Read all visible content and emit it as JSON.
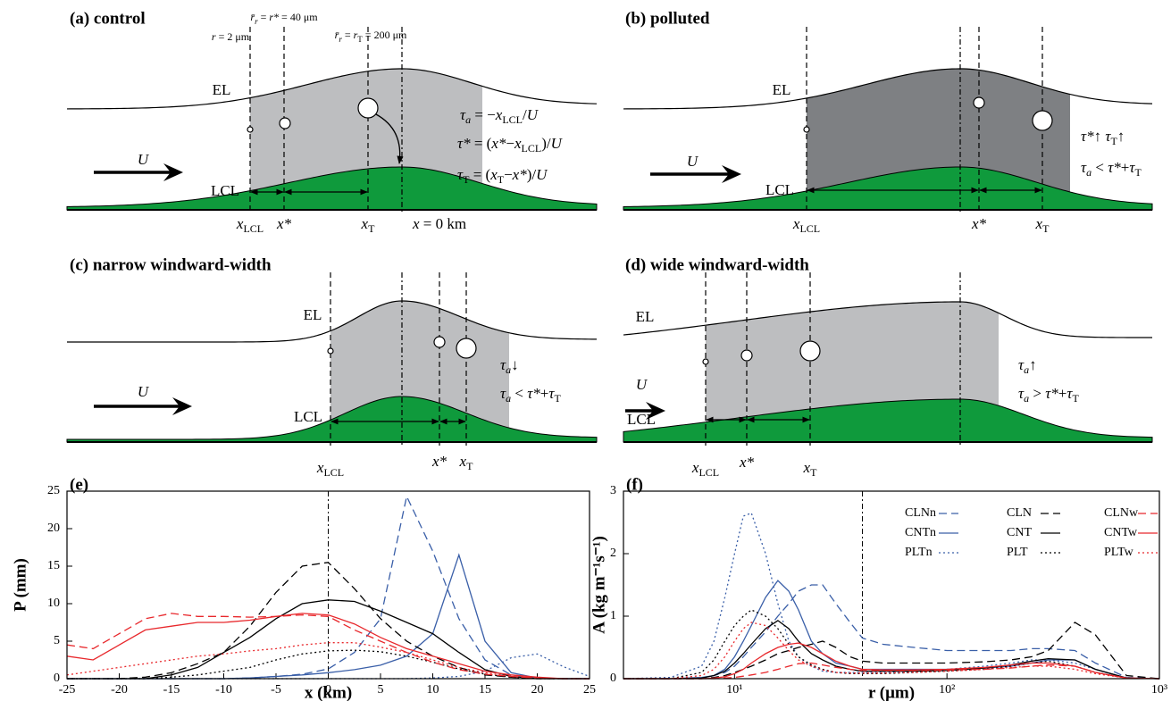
{
  "diagrams": [
    {
      "title": "(a) control",
      "labels": [
        [
          {
            "text": "EL"
          }
        ],
        [
          {
            "text": "LCL"
          }
        ],
        [
          {
            "text": "U",
            "style": "italic"
          }
        ],
        [
          {
            "text": "x",
            "style": "italic"
          },
          {
            "text": "LCL",
            "style": "sub"
          }
        ],
        [
          {
            "text": "x*",
            "style": "italic"
          }
        ],
        [
          {
            "text": "x",
            "style": "italic"
          },
          {
            "text": "T",
            "style": "sub"
          }
        ],
        [
          {
            "text": "x",
            "style": "italic"
          },
          {
            "text": " = 0 km"
          }
        ],
        [
          {
            "text": "r",
            "style": "italic"
          },
          {
            "text": " = 2 μm"
          }
        ],
        [
          {
            "text": "r̄",
            "style": "italic"
          },
          {
            "text": "r",
            "style": "sub-italic"
          },
          {
            "text": " = "
          },
          {
            "text": "r*",
            "style": "italic"
          },
          {
            "text": " = 40 μm"
          }
        ],
        [
          {
            "text": "r̄",
            "style": "italic"
          },
          {
            "text": "r",
            "style": "sub-italic"
          },
          {
            "text": " = "
          },
          {
            "text": "r",
            "style": "italic"
          },
          {
            "text": "T",
            "style": "sub"
          },
          {
            "text": " = 200 μm"
          }
        ],
        [
          {
            "text": "τ",
            "style": "italic"
          },
          {
            "text": "a",
            "style": "sub-italic"
          },
          {
            "text": " = −"
          },
          {
            "text": "x",
            "style": "italic"
          },
          {
            "text": "LCL",
            "style": "sub"
          },
          {
            "text": "/"
          },
          {
            "text": "U",
            "style": "italic"
          }
        ],
        [
          {
            "text": "τ*",
            "style": "italic"
          },
          {
            "text": " = ("
          },
          {
            "text": "x*",
            "style": "italic"
          },
          {
            "text": "−"
          },
          {
            "text": "x",
            "style": "italic"
          },
          {
            "text": "LCL",
            "style": "sub"
          },
          {
            "text": ")/"
          },
          {
            "text": "U",
            "style": "italic"
          }
        ],
        [
          {
            "text": "τ",
            "style": "italic"
          },
          {
            "text": "T",
            "style": "sub"
          },
          {
            "text": " = ("
          },
          {
            "text": "x",
            "style": "italic"
          },
          {
            "text": "T",
            "style": "sub"
          },
          {
            "text": "−"
          },
          {
            "text": "x*",
            "style": "italic"
          },
          {
            "text": ")/"
          },
          {
            "text": "U",
            "style": "italic"
          }
        ]
      ]
    },
    {
      "title": "(b) polluted",
      "labels": [
        [
          {
            "text": "EL"
          }
        ],
        [
          {
            "text": "LCL"
          }
        ],
        [
          {
            "text": "U",
            "style": "italic"
          }
        ],
        [
          {
            "text": "x",
            "style": "italic"
          },
          {
            "text": "LCL",
            "style": "sub"
          }
        ],
        [
          {
            "text": "x*",
            "style": "italic"
          }
        ],
        [
          {
            "text": "x",
            "style": "italic"
          },
          {
            "text": "T",
            "style": "sub"
          }
        ],
        [
          {
            "text": "τ*",
            "style": "italic"
          },
          {
            "text": "↑  "
          },
          {
            "text": "τ",
            "style": "italic"
          },
          {
            "text": "T",
            "style": "sub"
          },
          {
            "text": "↑"
          }
        ],
        [
          {
            "text": "τ",
            "style": "italic"
          },
          {
            "text": "a",
            "style": "sub-italic"
          },
          {
            "text": " < "
          },
          {
            "text": "τ*",
            "style": "italic"
          },
          {
            "text": "+"
          },
          {
            "text": "τ",
            "style": "italic"
          },
          {
            "text": "T",
            "style": "sub"
          }
        ]
      ]
    },
    {
      "title": "(c) narrow windward-width",
      "labels": [
        [
          {
            "text": "EL"
          }
        ],
        [
          {
            "text": "LCL"
          }
        ],
        [
          {
            "text": "U",
            "style": "italic"
          }
        ],
        [
          {
            "text": "x",
            "style": "italic"
          },
          {
            "text": "LCL",
            "style": "sub"
          }
        ],
        [
          {
            "text": "x*",
            "style": "italic"
          }
        ],
        [
          {
            "text": "x",
            "style": "italic"
          },
          {
            "text": "T",
            "style": "sub"
          }
        ],
        [
          {
            "text": "τ",
            "style": "italic"
          },
          {
            "text": "a",
            "style": "sub-italic"
          },
          {
            "text": "↓"
          }
        ],
        [
          {
            "text": "τ",
            "style": "italic"
          },
          {
            "text": "a",
            "style": "sub-italic"
          },
          {
            "text": " < "
          },
          {
            "text": "τ*",
            "style": "italic"
          },
          {
            "text": "+"
          },
          {
            "text": "τ",
            "style": "italic"
          },
          {
            "text": "T",
            "style": "sub"
          }
        ]
      ]
    },
    {
      "title": "(d) wide windward-width",
      "labels": [
        [
          {
            "text": "EL"
          }
        ],
        [
          {
            "text": "LCL"
          }
        ],
        [
          {
            "text": "U",
            "style": "italic"
          }
        ],
        [
          {
            "text": "x",
            "style": "italic"
          },
          {
            "text": "LCL",
            "style": "sub"
          }
        ],
        [
          {
            "text": "x*",
            "style": "italic"
          }
        ],
        [
          {
            "text": "x",
            "style": "italic"
          },
          {
            "text": "T",
            "style": "sub"
          }
        ],
        [
          {
            "text": "τ",
            "style": "italic"
          },
          {
            "text": "a",
            "style": "sub-italic"
          },
          {
            "text": "↑"
          }
        ],
        [
          {
            "text": "τ",
            "style": "italic"
          },
          {
            "text": "a",
            "style": "sub-italic"
          },
          {
            "text": " > "
          },
          {
            "text": "τ*",
            "style": "italic"
          },
          {
            "text": "+"
          },
          {
            "text": "τ",
            "style": "italic"
          },
          {
            "text": "T",
            "style": "sub"
          }
        ]
      ]
    }
  ],
  "chart_data": [
    {
      "type": "line",
      "title": "(e)",
      "x_label": "x (km)",
      "y_label": "P (mm)",
      "x": [
        -25,
        -22.5,
        -20,
        -17.5,
        -15,
        -12.5,
        -10,
        -7.5,
        -5,
        -2.5,
        0,
        2.5,
        5,
        7.5,
        10,
        12.5,
        15,
        17.5,
        20,
        22.5,
        25
      ],
      "xlim": [
        -25,
        25
      ],
      "xticks": [
        -25,
        -20,
        -15,
        -10,
        -5,
        0,
        5,
        10,
        15,
        20,
        25
      ],
      "ylim": [
        0,
        25
      ],
      "yticks": [
        0,
        5,
        10,
        15,
        20,
        25
      ],
      "vline": 0,
      "series": [
        {
          "color": "#3a5fa8",
          "dash": "dashed",
          "values": [
            0,
            0,
            0,
            0,
            0,
            0,
            0,
            0.1,
            0.3,
            0.6,
            1.3,
            3.5,
            8,
            24.3,
            17,
            8,
            2.5,
            0.5,
            0.1,
            0,
            0
          ]
        },
        {
          "color": "#3a5fa8",
          "dash": "solid",
          "values": [
            0,
            0,
            0,
            0,
            0,
            0,
            0,
            0.1,
            0.3,
            0.5,
            0.8,
            1.2,
            1.8,
            3,
            6,
            16.5,
            5,
            0.8,
            0.1,
            0,
            0
          ]
        },
        {
          "color": "#3a5fa8",
          "dash": "dotted",
          "values": [
            0,
            0,
            0,
            0,
            0,
            0,
            0,
            0,
            0,
            0,
            0,
            0,
            0,
            0,
            0.1,
            0.3,
            1,
            2.8,
            3.3,
            1.6,
            0.3
          ]
        },
        {
          "color": "#000000",
          "dash": "dashed",
          "values": [
            0,
            0,
            0,
            0.2,
            0.8,
            2,
            3.5,
            7,
            11.5,
            15,
            15.5,
            12,
            8,
            5,
            3,
            1.5,
            0.5,
            0.2,
            0,
            0,
            0
          ]
        },
        {
          "color": "#000000",
          "dash": "solid",
          "values": [
            0,
            0,
            0,
            0,
            0.5,
            1.5,
            3.5,
            5.5,
            8,
            10,
            10.5,
            10.3,
            9,
            7.5,
            6,
            3.5,
            1.2,
            0.3,
            0,
            0,
            0
          ]
        },
        {
          "color": "#000000",
          "dash": "dotted",
          "values": [
            0,
            0,
            0,
            0,
            0.2,
            0.5,
            1,
            1.5,
            2.5,
            3.3,
            3.7,
            3.8,
            3.6,
            3,
            2.2,
            1.3,
            0.6,
            0.2,
            0,
            0,
            0
          ]
        },
        {
          "color": "#e8282c",
          "dash": "dashed",
          "values": [
            4.5,
            4,
            6,
            8,
            8.7,
            8.3,
            8.3,
            8.2,
            8.3,
            8.5,
            8.3,
            6.5,
            5,
            3.5,
            2.2,
            1.2,
            0.6,
            0.3,
            0.1,
            0,
            0
          ]
        },
        {
          "color": "#e8282c",
          "dash": "solid",
          "values": [
            3,
            2.5,
            4.5,
            6.5,
            7,
            7.5,
            7.5,
            7.8,
            8.3,
            8.7,
            8.5,
            7.3,
            5.5,
            4,
            3,
            2,
            1,
            0.5,
            0.2,
            0,
            0
          ]
        },
        {
          "color": "#e8282c",
          "dash": "dotted",
          "values": [
            0.5,
            1,
            1.5,
            2,
            2.5,
            3,
            3.3,
            3.7,
            4,
            4.5,
            4.8,
            4.8,
            4.2,
            3.5,
            2.5,
            1.5,
            0.8,
            0.3,
            0.1,
            0,
            0
          ]
        }
      ]
    },
    {
      "type": "line",
      "title": "(f)",
      "x_label": "r (μm)",
      "y_label": "A (kg m⁻¹s⁻¹)",
      "xscale": "log",
      "legend": "upper right",
      "x": [
        3,
        5,
        7,
        8,
        9,
        10,
        11,
        12,
        14,
        16,
        18,
        20,
        23,
        26,
        30,
        35,
        40,
        50,
        70,
        100,
        150,
        200,
        250,
        300,
        400,
        500,
        700,
        1000
      ],
      "xlim": [
        3,
        1000
      ],
      "xticks": [
        {
          "value": 10,
          "label": "10¹"
        },
        {
          "value": 100,
          "label": "10²"
        },
        {
          "value": 1000,
          "label": "10³"
        }
      ],
      "ylim": [
        0,
        3
      ],
      "yticks": [
        0,
        1,
        2,
        3
      ],
      "vline": 40,
      "series": [
        {
          "name": "CLNn",
          "color": "#3a5fa8",
          "dash": "dashed",
          "values": [
            0,
            0,
            0,
            0.05,
            0.1,
            0.2,
            0.35,
            0.5,
            0.75,
            1.0,
            1.2,
            1.4,
            1.5,
            1.5,
            1.2,
            0.9,
            0.65,
            0.55,
            0.5,
            0.45,
            0.45,
            0.45,
            0.48,
            0.48,
            0.45,
            0.25,
            0.02,
            0
          ]
        },
        {
          "name": "CNTn",
          "color": "#3a5fa8",
          "dash": "solid",
          "values": [
            0,
            0,
            0.02,
            0.05,
            0.15,
            0.35,
            0.6,
            0.85,
            1.3,
            1.57,
            1.4,
            1.1,
            0.6,
            0.4,
            0.25,
            0.2,
            0.15,
            0.15,
            0.15,
            0.15,
            0.17,
            0.2,
            0.25,
            0.3,
            0.3,
            0.15,
            0.01,
            0
          ]
        },
        {
          "name": "PLTn",
          "color": "#3a5fa8",
          "dash": "dotted",
          "values": [
            0,
            0.02,
            0.2,
            0.6,
            1.3,
            2.0,
            2.6,
            2.65,
            2.0,
            1.2,
            0.6,
            0.35,
            0.2,
            0.12,
            0.1,
            0.1,
            0.1,
            0.1,
            0.12,
            0.15,
            0.2,
            0.25,
            0.3,
            0.3,
            0.25,
            0.15,
            0.01,
            0
          ]
        },
        {
          "name": "CLN",
          "color": "#000000",
          "dash": "dashed",
          "values": [
            0,
            0,
            0,
            0.02,
            0.05,
            0.1,
            0.15,
            0.2,
            0.3,
            0.4,
            0.45,
            0.5,
            0.55,
            0.6,
            0.5,
            0.35,
            0.28,
            0.25,
            0.25,
            0.25,
            0.27,
            0.3,
            0.35,
            0.45,
            0.9,
            0.7,
            0.05,
            0
          ]
        },
        {
          "name": "CNT",
          "color": "#000000",
          "dash": "solid",
          "values": [
            0,
            0,
            0.01,
            0.05,
            0.12,
            0.25,
            0.4,
            0.55,
            0.8,
            0.93,
            0.8,
            0.6,
            0.4,
            0.3,
            0.2,
            0.15,
            0.12,
            0.12,
            0.12,
            0.13,
            0.17,
            0.22,
            0.28,
            0.32,
            0.3,
            0.15,
            0.01,
            0
          ]
        },
        {
          "name": "PLT",
          "color": "#000000",
          "dash": "dotted",
          "values": [
            0,
            0,
            0.1,
            0.3,
            0.6,
            0.85,
            1.0,
            1.1,
            1.0,
            0.8,
            0.55,
            0.35,
            0.22,
            0.15,
            0.1,
            0.08,
            0.08,
            0.08,
            0.1,
            0.12,
            0.15,
            0.2,
            0.25,
            0.28,
            0.2,
            0.1,
            0.01,
            0
          ]
        },
        {
          "name": "CLNw",
          "color": "#e8282c",
          "dash": "dashed",
          "values": [
            0,
            0,
            0,
            0,
            0.01,
            0.02,
            0.04,
            0.06,
            0.1,
            0.15,
            0.2,
            0.24,
            0.25,
            0.22,
            0.18,
            0.15,
            0.13,
            0.13,
            0.13,
            0.14,
            0.15,
            0.17,
            0.2,
            0.22,
            0.2,
            0.1,
            0.01,
            0
          ]
        },
        {
          "name": "CNTw",
          "color": "#e8282c",
          "dash": "solid",
          "values": [
            0,
            0,
            0,
            0.01,
            0.03,
            0.08,
            0.15,
            0.25,
            0.4,
            0.5,
            0.55,
            0.57,
            0.5,
            0.4,
            0.28,
            0.2,
            0.15,
            0.14,
            0.14,
            0.15,
            0.18,
            0.22,
            0.25,
            0.25,
            0.2,
            0.1,
            0.01,
            0
          ]
        },
        {
          "name": "PLTw",
          "color": "#e8282c",
          "dash": "dotted",
          "values": [
            0,
            0,
            0.05,
            0.15,
            0.35,
            0.6,
            0.8,
            0.9,
            0.85,
            0.65,
            0.45,
            0.3,
            0.2,
            0.14,
            0.1,
            0.09,
            0.09,
            0.09,
            0.1,
            0.12,
            0.15,
            0.18,
            0.2,
            0.2,
            0.15,
            0.08,
            0.01,
            0
          ]
        }
      ]
    }
  ]
}
